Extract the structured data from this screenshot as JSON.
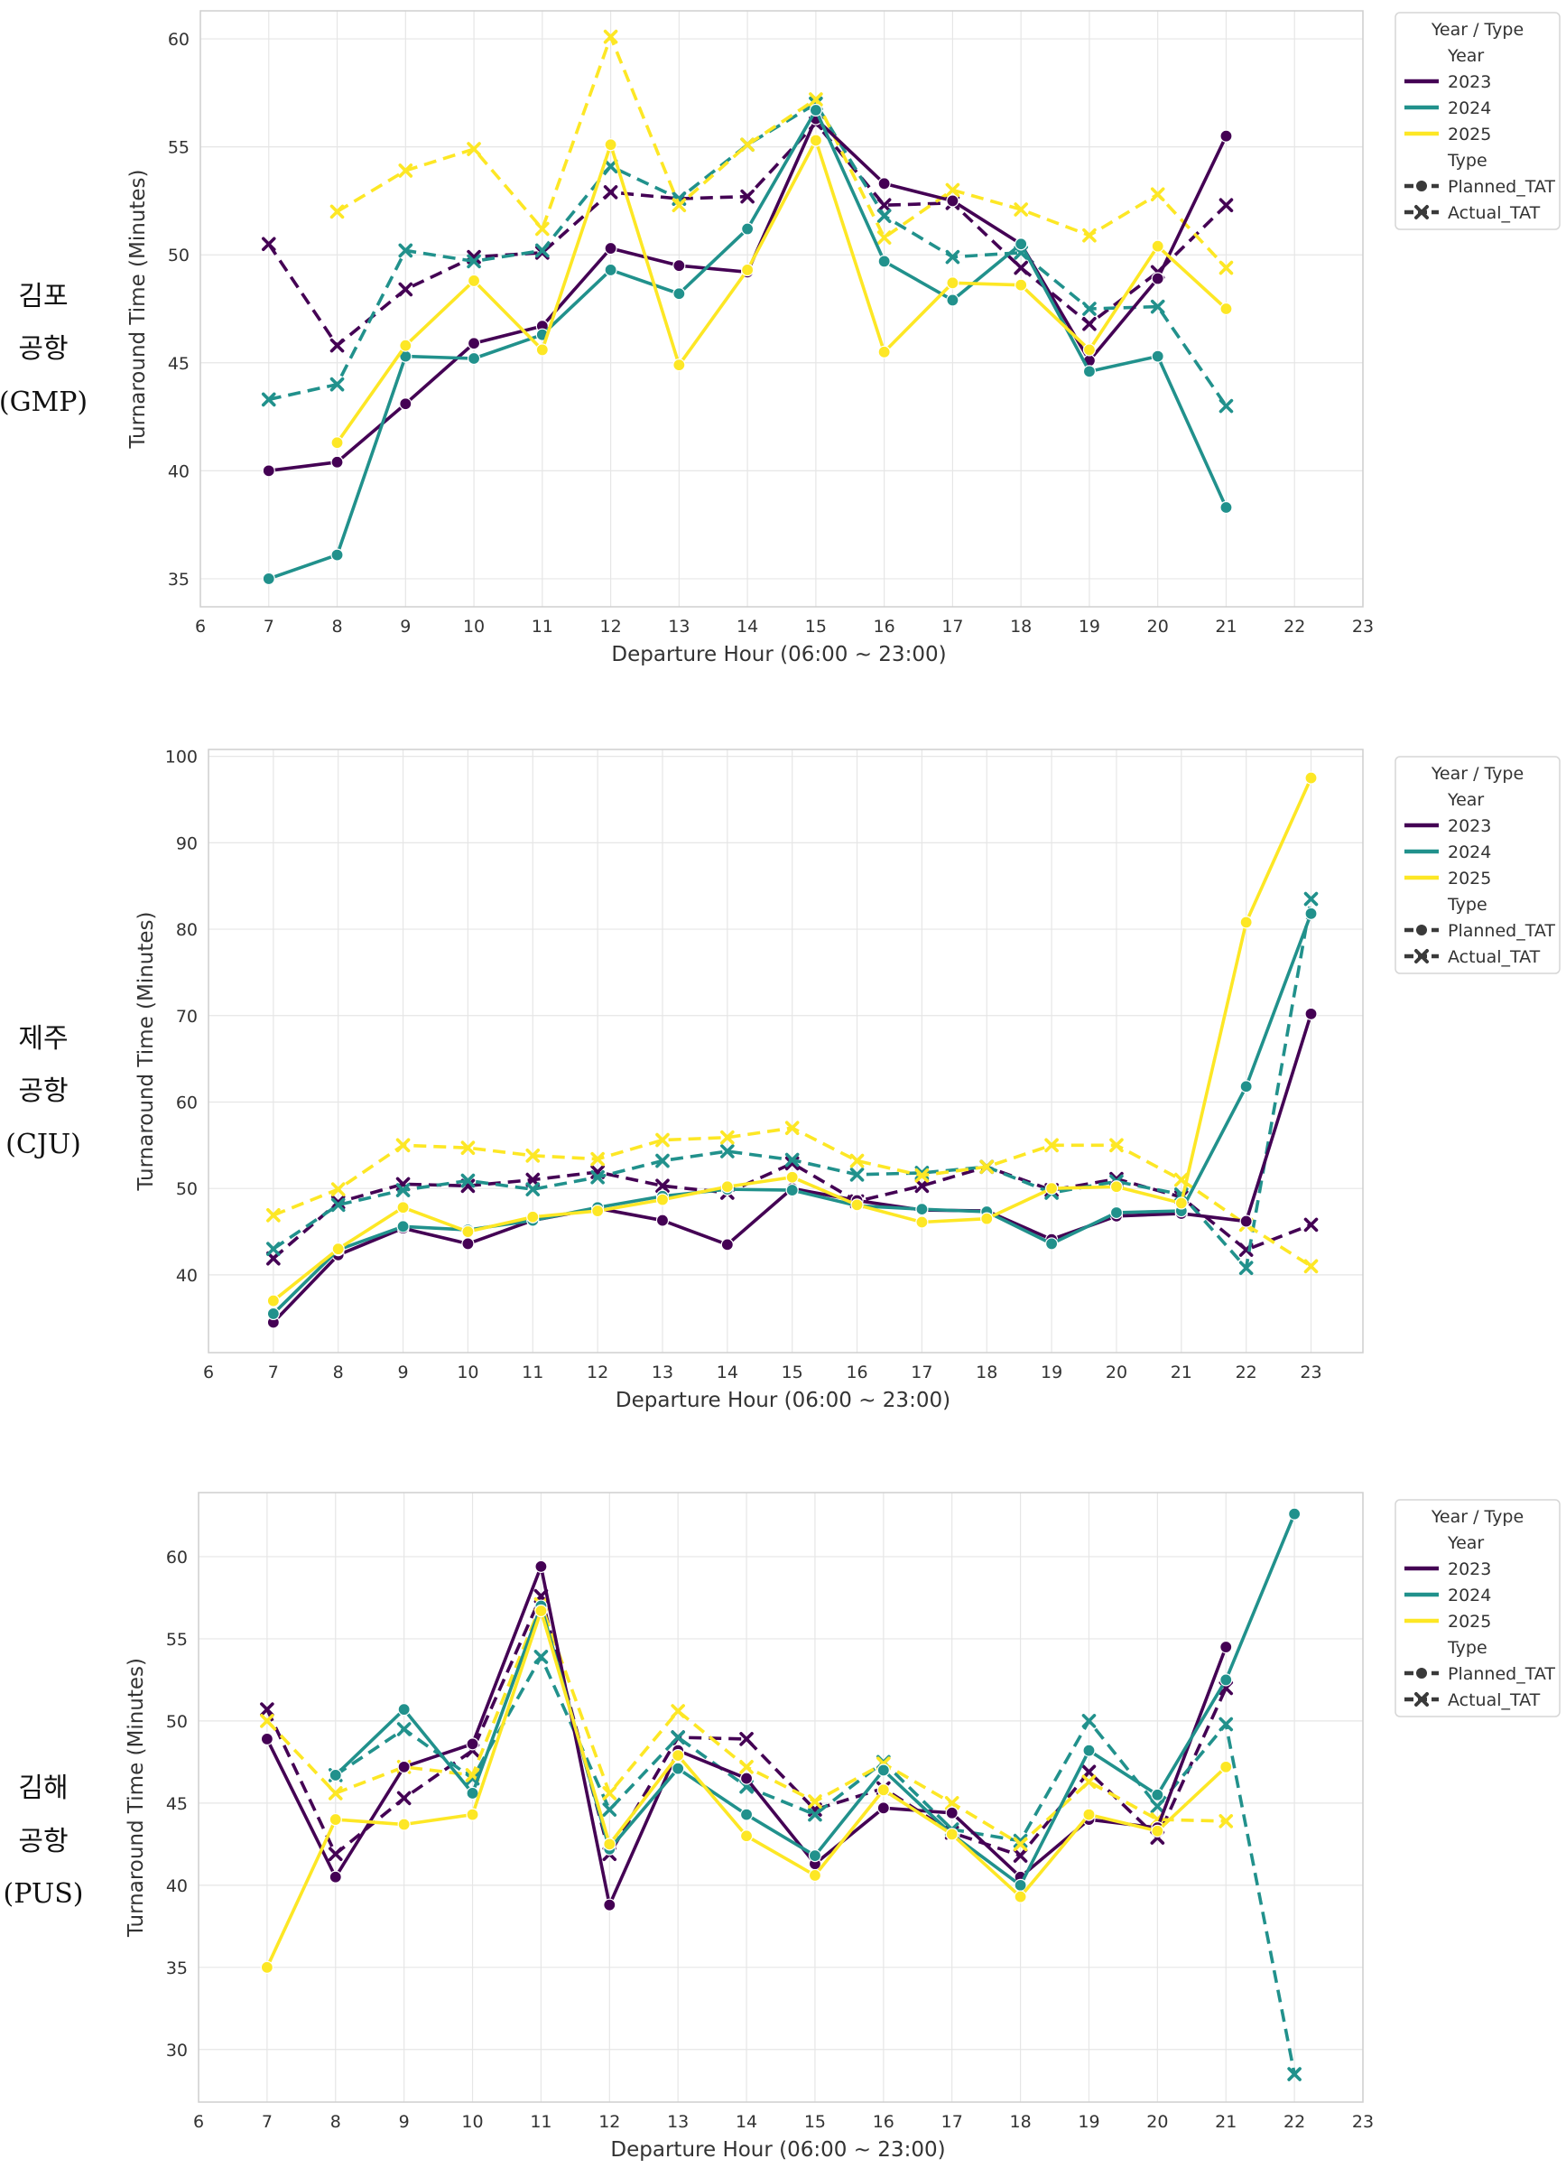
{
  "palette": {
    "2023": "#440154",
    "2024": "#21918c",
    "2025": "#fde725",
    "type_marker": "#3a3a3a"
  },
  "legend": {
    "title": "Year / Type",
    "year_header": "Year",
    "type_header": "Type",
    "years": [
      "2023",
      "2024",
      "2025"
    ],
    "types": [
      "Planned_TAT",
      "Actual_TAT"
    ]
  },
  "row_labels": [
    [
      "김포",
      "공항",
      "(GMP)"
    ],
    [
      "제주",
      "공항",
      "(CJU)"
    ],
    [
      "김해",
      "공항",
      "(PUS)"
    ]
  ],
  "chart_data": [
    {
      "type": "line",
      "airport": "GMP",
      "xlabel": "Departure Hour (06:00 ~ 23:00)",
      "ylabel": "Turnaround Time (Minutes)",
      "xlim": [
        6,
        23
      ],
      "ylim": [
        33.7,
        61.3
      ],
      "yticks": [
        35,
        40,
        45,
        50,
        55,
        60
      ],
      "xticks": [
        6,
        7,
        8,
        9,
        10,
        11,
        12,
        13,
        14,
        15,
        16,
        17,
        18,
        19,
        20,
        21,
        22,
        23
      ],
      "grid": true,
      "legend_position": "outside-right",
      "series": [
        {
          "year": "2023",
          "kind": "Planned_TAT",
          "x": [
            7,
            8,
            9,
            10,
            11,
            12,
            13,
            14,
            15,
            16,
            17,
            18,
            19,
            20,
            21
          ],
          "y": [
            40.0,
            40.4,
            43.1,
            45.9,
            46.7,
            50.3,
            49.5,
            49.2,
            56.3,
            53.3,
            52.5,
            50.5,
            45.1,
            48.9,
            55.5
          ]
        },
        {
          "year": "2023",
          "kind": "Actual_TAT",
          "x": [
            7,
            8,
            9,
            10,
            11,
            12,
            13,
            14,
            15,
            16,
            17,
            18,
            19,
            20,
            21
          ],
          "y": [
            50.5,
            45.8,
            48.4,
            49.9,
            50.1,
            52.9,
            52.6,
            52.7,
            56.1,
            52.3,
            52.4,
            49.4,
            46.8,
            49.2,
            52.3
          ]
        },
        {
          "year": "2024",
          "kind": "Planned_TAT",
          "x": [
            7,
            8,
            9,
            10,
            11,
            12,
            13,
            14,
            15,
            16,
            17,
            18,
            19,
            20,
            21
          ],
          "y": [
            35.0,
            36.1,
            45.3,
            45.2,
            46.3,
            49.3,
            48.2,
            51.2,
            56.7,
            49.7,
            47.9,
            50.5,
            44.6,
            45.3,
            38.3
          ]
        },
        {
          "year": "2024",
          "kind": "Actual_TAT",
          "x": [
            7,
            8,
            9,
            10,
            11,
            12,
            13,
            14,
            15,
            16,
            17,
            18,
            19,
            20,
            21
          ],
          "y": [
            43.3,
            44.0,
            50.2,
            49.7,
            50.2,
            54.1,
            52.6,
            55.1,
            57.0,
            51.8,
            49.9,
            50.1,
            47.5,
            47.6,
            43.0
          ]
        },
        {
          "year": "2025",
          "kind": "Planned_TAT",
          "x": [
            8,
            9,
            10,
            11,
            12,
            13,
            14,
            15,
            16,
            17,
            18,
            19,
            20,
            21
          ],
          "y": [
            41.3,
            45.8,
            48.8,
            45.6,
            55.1,
            44.9,
            49.3,
            55.3,
            45.5,
            48.7,
            48.6,
            45.6,
            50.4,
            47.5
          ]
        },
        {
          "year": "2025",
          "kind": "Actual_TAT",
          "x": [
            8,
            9,
            10,
            11,
            12,
            13,
            14,
            15,
            16,
            17,
            18,
            19,
            20,
            21
          ],
          "y": [
            52.0,
            53.9,
            54.9,
            51.2,
            60.1,
            52.3,
            55.1,
            57.2,
            50.8,
            53.0,
            52.1,
            50.9,
            52.8,
            49.4
          ]
        }
      ]
    },
    {
      "type": "line",
      "airport": "CJU",
      "xlabel": "Departure Hour (06:00 ~ 23:00)",
      "ylabel": "Turnaround Time (Minutes)",
      "xlim": [
        6,
        23.8
      ],
      "ylim": [
        31,
        100.8
      ],
      "yticks": [
        40,
        50,
        60,
        70,
        80,
        90,
        100
      ],
      "xticks": [
        6,
        7,
        8,
        9,
        10,
        11,
        12,
        13,
        14,
        15,
        16,
        17,
        18,
        19,
        20,
        21,
        22,
        23
      ],
      "grid": true,
      "legend_position": "outside-right",
      "series": [
        {
          "year": "2023",
          "kind": "Planned_TAT",
          "x": [
            7,
            8,
            9,
            10,
            11,
            12,
            13,
            14,
            15,
            16,
            17,
            18,
            19,
            20,
            21,
            22,
            23
          ],
          "y": [
            34.5,
            42.3,
            45.4,
            43.6,
            46.3,
            47.7,
            46.3,
            43.5,
            50.0,
            48.6,
            47.5,
            47.4,
            44.1,
            46.8,
            47.1,
            46.2,
            70.2
          ]
        },
        {
          "year": "2023",
          "kind": "Actual_TAT",
          "x": [
            7,
            8,
            9,
            10,
            11,
            12,
            13,
            14,
            15,
            16,
            17,
            18,
            19,
            20,
            21,
            22,
            23
          ],
          "y": [
            41.9,
            48.4,
            50.5,
            50.3,
            51.0,
            51.9,
            50.3,
            49.5,
            52.9,
            48.5,
            50.3,
            52.5,
            49.8,
            51.1,
            49.0,
            42.9,
            45.8
          ]
        },
        {
          "year": "2024",
          "kind": "Planned_TAT",
          "x": [
            7,
            8,
            9,
            10,
            11,
            12,
            13,
            14,
            15,
            16,
            17,
            18,
            19,
            20,
            21,
            22,
            23
          ],
          "y": [
            35.5,
            42.9,
            45.6,
            45.2,
            46.3,
            47.8,
            49.1,
            49.9,
            49.8,
            48.0,
            47.6,
            47.3,
            43.6,
            47.2,
            47.4,
            61.8,
            81.8
          ]
        },
        {
          "year": "2024",
          "kind": "Actual_TAT",
          "x": [
            7,
            8,
            9,
            10,
            11,
            12,
            13,
            14,
            15,
            16,
            17,
            18,
            19,
            20,
            21,
            22,
            23
          ],
          "y": [
            43.0,
            48.1,
            49.8,
            50.9,
            49.9,
            51.3,
            53.2,
            54.3,
            53.3,
            51.6,
            51.8,
            52.5,
            49.5,
            50.8,
            49.3,
            40.8,
            83.5
          ]
        },
        {
          "year": "2025",
          "kind": "Planned_TAT",
          "x": [
            7,
            8,
            9,
            10,
            11,
            12,
            13,
            14,
            15,
            16,
            17,
            18,
            19,
            20,
            21,
            22,
            23
          ],
          "y": [
            37.0,
            43.0,
            47.8,
            45.0,
            46.7,
            47.4,
            48.7,
            50.2,
            51.3,
            48.1,
            46.1,
            46.5,
            50.0,
            50.2,
            48.3,
            80.8,
            97.5
          ]
        },
        {
          "year": "2025",
          "kind": "Actual_TAT",
          "x": [
            7,
            8,
            9,
            10,
            11,
            12,
            13,
            14,
            15,
            16,
            17,
            18,
            19,
            20,
            21,
            22,
            23
          ],
          "y": [
            46.9,
            49.9,
            55.0,
            54.7,
            53.8,
            53.4,
            55.6,
            55.9,
            57.0,
            53.2,
            51.5,
            52.5,
            55.0,
            55.0,
            51.0,
            45.8,
            41.0
          ]
        }
      ]
    },
    {
      "type": "line",
      "airport": "PUS",
      "xlabel": "Departure Hour (06:00 ~ 23:00)",
      "ylabel": "Turnaround Time (Minutes)",
      "xlim": [
        6,
        23
      ],
      "ylim": [
        26.8,
        63.9
      ],
      "yticks": [
        30,
        35,
        40,
        45,
        50,
        55,
        60
      ],
      "xticks": [
        6,
        7,
        8,
        9,
        10,
        11,
        12,
        13,
        14,
        15,
        16,
        17,
        18,
        19,
        20,
        21,
        22,
        23
      ],
      "grid": true,
      "legend_position": "outside-right",
      "series": [
        {
          "year": "2023",
          "kind": "Planned_TAT",
          "x": [
            7,
            8,
            9,
            10,
            11,
            12,
            13,
            14,
            15,
            16,
            17,
            18,
            19,
            20,
            21
          ],
          "y": [
            48.9,
            40.5,
            47.2,
            48.6,
            59.4,
            38.8,
            48.2,
            46.5,
            41.3,
            44.7,
            44.4,
            40.5,
            44.0,
            43.5,
            54.5
          ]
        },
        {
          "year": "2023",
          "kind": "Actual_TAT",
          "x": [
            7,
            8,
            9,
            10,
            11,
            12,
            13,
            14,
            15,
            16,
            17,
            18,
            19,
            20,
            21
          ],
          "y": [
            50.7,
            41.9,
            45.3,
            48.2,
            57.6,
            41.9,
            49.0,
            48.9,
            44.6,
            45.9,
            43.2,
            41.8,
            46.9,
            42.9,
            52.0
          ]
        },
        {
          "year": "2024",
          "kind": "Planned_TAT",
          "x": [
            8,
            9,
            10,
            11,
            12,
            13,
            14,
            15,
            16,
            17,
            18,
            19,
            20,
            21,
            22
          ],
          "y": [
            46.7,
            50.7,
            45.6,
            57.0,
            42.2,
            47.1,
            44.3,
            41.8,
            47.0,
            43.1,
            40.0,
            48.2,
            45.5,
            52.5,
            62.6
          ]
        },
        {
          "year": "2024",
          "kind": "Actual_TAT",
          "x": [
            8,
            9,
            10,
            11,
            12,
            13,
            14,
            15,
            16,
            17,
            18,
            19,
            20,
            21,
            22
          ],
          "y": [
            46.7,
            49.5,
            46.5,
            53.9,
            44.6,
            49.0,
            46.0,
            44.3,
            47.5,
            43.4,
            42.7,
            50.0,
            44.8,
            49.8,
            28.5
          ]
        },
        {
          "year": "2025",
          "kind": "Planned_TAT",
          "x": [
            7,
            8,
            9,
            10,
            11,
            12,
            13,
            14,
            15,
            16,
            17,
            18,
            19,
            20,
            21
          ],
          "y": [
            35.0,
            44.0,
            43.7,
            44.3,
            56.7,
            42.5,
            47.9,
            43.0,
            40.6,
            45.8,
            43.1,
            39.3,
            44.3,
            43.3,
            47.2
          ]
        },
        {
          "year": "2025",
          "kind": "Actual_TAT",
          "x": [
            7,
            8,
            9,
            10,
            11,
            12,
            13,
            14,
            15,
            16,
            17,
            18,
            19,
            20,
            21
          ],
          "y": [
            50.0,
            45.6,
            47.2,
            46.7,
            57.1,
            45.6,
            50.6,
            47.2,
            45.1,
            47.4,
            45.0,
            42.5,
            46.3,
            44.0,
            43.9
          ]
        }
      ]
    }
  ]
}
